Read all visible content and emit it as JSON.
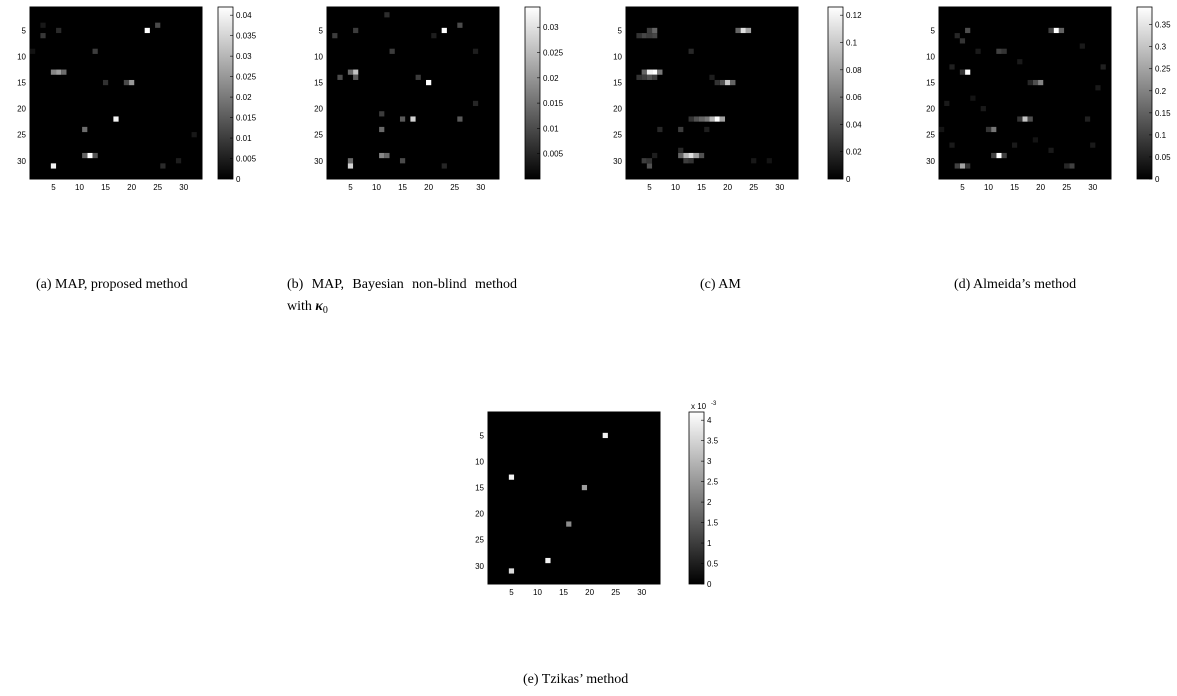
{
  "panels": [
    {
      "id": "a",
      "caption": "(a) MAP, proposed method",
      "ticks": {
        "x": [
          5,
          10,
          15,
          20,
          25,
          30
        ],
        "y": [
          5,
          10,
          15,
          20,
          25,
          30
        ]
      },
      "colorbar": {
        "min": 0,
        "max": 0.042,
        "ticks": [
          0,
          0.005,
          0.01,
          0.015,
          0.02,
          0.025,
          0.03,
          0.035,
          0.04
        ],
        "labels": [
          "0",
          "0.005",
          "0.01",
          "0.015",
          "0.02",
          "0.025",
          "0.03",
          "0.035",
          "0.04"
        ]
      },
      "multiplier": "",
      "cells": [
        [
          23,
          5,
          0.042
        ],
        [
          25,
          4,
          0.012
        ],
        [
          3,
          6,
          0.009
        ],
        [
          6,
          5,
          0.007
        ],
        [
          13,
          9,
          0.01
        ],
        [
          5,
          13,
          0.022
        ],
        [
          6,
          13,
          0.026
        ],
        [
          7,
          13,
          0.018
        ],
        [
          20,
          15,
          0.025
        ],
        [
          19,
          15,
          0.012
        ],
        [
          15,
          15,
          0.008
        ],
        [
          17,
          22,
          0.04
        ],
        [
          11,
          24,
          0.018
        ],
        [
          12,
          29,
          0.042
        ],
        [
          11,
          29,
          0.016
        ],
        [
          13,
          29,
          0.014
        ],
        [
          5,
          31,
          0.04
        ],
        [
          26,
          31,
          0.007
        ],
        [
          29,
          30,
          0.005
        ],
        [
          32,
          25,
          0.004
        ],
        [
          3,
          4,
          0.004
        ],
        [
          1,
          9,
          0.003
        ]
      ]
    },
    {
      "id": "b",
      "caption": "(b) MAP, Bayesian non-blind method with",
      "caption_symbol": "κ",
      "caption_sub": "0",
      "ticks": {
        "x": [
          5,
          10,
          15,
          20,
          25,
          30
        ],
        "y": [
          5,
          10,
          15,
          20,
          25,
          30
        ]
      },
      "colorbar": {
        "min": 0,
        "max": 0.034,
        "ticks": [
          0.005,
          0.01,
          0.015,
          0.02,
          0.025,
          0.03
        ],
        "labels": [
          "0.005",
          "0.01",
          "0.015",
          "0.02",
          "0.025",
          "0.03"
        ]
      },
      "multiplier": "",
      "cells": [
        [
          23,
          5,
          0.034
        ],
        [
          26,
          4,
          0.01
        ],
        [
          2,
          6,
          0.008
        ],
        [
          6,
          5,
          0.008
        ],
        [
          12,
          2,
          0.006
        ],
        [
          13,
          9,
          0.008
        ],
        [
          6,
          13,
          0.026
        ],
        [
          5,
          13,
          0.014
        ],
        [
          6,
          14,
          0.012
        ],
        [
          3,
          14,
          0.01
        ],
        [
          20,
          15,
          0.034
        ],
        [
          18,
          14,
          0.008
        ],
        [
          29,
          19,
          0.005
        ],
        [
          11,
          21,
          0.008
        ],
        [
          15,
          22,
          0.012
        ],
        [
          17,
          22,
          0.028
        ],
        [
          11,
          24,
          0.014
        ],
        [
          26,
          22,
          0.012
        ],
        [
          11,
          29,
          0.018
        ],
        [
          12,
          29,
          0.014
        ],
        [
          15,
          30,
          0.01
        ],
        [
          5,
          30,
          0.014
        ],
        [
          5,
          31,
          0.028
        ],
        [
          23,
          31,
          0.005
        ],
        [
          29,
          9,
          0.004
        ],
        [
          21,
          6,
          0.004
        ]
      ]
    },
    {
      "id": "c",
      "caption": "(c) AM",
      "ticks": {
        "x": [
          5,
          10,
          15,
          20,
          25,
          30
        ],
        "y": [
          5,
          10,
          15,
          20,
          25,
          30
        ]
      },
      "colorbar": {
        "min": 0,
        "max": 0.126,
        "ticks": [
          0,
          0.02,
          0.04,
          0.06,
          0.08,
          0.1,
          0.12
        ],
        "labels": [
          "0",
          "0.02",
          "0.04",
          "0.06",
          "0.08",
          "0.1",
          "0.12"
        ]
      },
      "multiplier": "",
      "cells": [
        [
          22,
          5,
          0.05
        ],
        [
          23,
          5,
          0.11
        ],
        [
          24,
          5,
          0.08
        ],
        [
          5,
          5,
          0.03
        ],
        [
          6,
          5,
          0.05
        ],
        [
          3,
          6,
          0.025
        ],
        [
          4,
          6,
          0.035
        ],
        [
          5,
          6,
          0.03
        ],
        [
          6,
          6,
          0.035
        ],
        [
          13,
          9,
          0.02
        ],
        [
          4,
          13,
          0.05
        ],
        [
          5,
          13,
          0.12
        ],
        [
          6,
          13,
          0.126
        ],
        [
          7,
          13,
          0.06
        ],
        [
          3,
          14,
          0.025
        ],
        [
          4,
          14,
          0.03
        ],
        [
          5,
          14,
          0.04
        ],
        [
          6,
          14,
          0.03
        ],
        [
          19,
          15,
          0.04
        ],
        [
          20,
          15,
          0.1
        ],
        [
          21,
          15,
          0.05
        ],
        [
          18,
          15,
          0.025
        ],
        [
          17,
          14,
          0.015
        ],
        [
          13,
          22,
          0.025
        ],
        [
          14,
          22,
          0.04
        ],
        [
          15,
          22,
          0.05
        ],
        [
          16,
          22,
          0.06
        ],
        [
          17,
          22,
          0.09
        ],
        [
          18,
          22,
          0.126
        ],
        [
          19,
          22,
          0.08
        ],
        [
          11,
          24,
          0.03
        ],
        [
          7,
          24,
          0.02
        ],
        [
          16,
          24,
          0.015
        ],
        [
          11,
          29,
          0.05
        ],
        [
          12,
          29,
          0.09
        ],
        [
          13,
          29,
          0.11
        ],
        [
          14,
          29,
          0.08
        ],
        [
          15,
          29,
          0.04
        ],
        [
          12,
          30,
          0.03
        ],
        [
          4,
          30,
          0.03
        ],
        [
          5,
          31,
          0.04
        ],
        [
          5,
          30,
          0.025
        ],
        [
          6,
          29,
          0.015
        ],
        [
          11,
          28,
          0.02
        ],
        [
          25,
          30,
          0.012
        ],
        [
          28,
          30,
          0.01
        ],
        [
          13,
          30,
          0.025
        ]
      ]
    },
    {
      "id": "d",
      "caption": "(d) Almeida’s method",
      "ticks": {
        "x": [
          5,
          10,
          15,
          20,
          25,
          30
        ],
        "y": [
          5,
          10,
          15,
          20,
          25,
          30
        ]
      },
      "colorbar": {
        "min": 0,
        "max": 0.39,
        "ticks": [
          0,
          0.05,
          0.1,
          0.15,
          0.2,
          0.25,
          0.3,
          0.35
        ],
        "labels": [
          "0",
          "0.05",
          "0.1",
          "0.15",
          "0.2",
          "0.25",
          "0.3",
          "0.35"
        ]
      },
      "multiplier": "",
      "cells": [
        [
          23,
          5,
          0.39
        ],
        [
          22,
          5,
          0.1
        ],
        [
          24,
          5,
          0.15
        ],
        [
          6,
          5,
          0.12
        ],
        [
          5,
          7,
          0.08
        ],
        [
          4,
          6,
          0.06
        ],
        [
          12,
          9,
          0.1
        ],
        [
          13,
          9,
          0.08
        ],
        [
          6,
          13,
          0.39
        ],
        [
          5,
          13,
          0.08
        ],
        [
          3,
          12,
          0.05
        ],
        [
          20,
          15,
          0.2
        ],
        [
          19,
          15,
          0.12
        ],
        [
          18,
          15,
          0.06
        ],
        [
          17,
          22,
          0.3
        ],
        [
          18,
          22,
          0.12
        ],
        [
          16,
          22,
          0.08
        ],
        [
          11,
          24,
          0.18
        ],
        [
          10,
          24,
          0.08
        ],
        [
          12,
          29,
          0.39
        ],
        [
          11,
          29,
          0.1
        ],
        [
          13,
          29,
          0.1
        ],
        [
          5,
          31,
          0.25
        ],
        [
          4,
          31,
          0.1
        ],
        [
          6,
          31,
          0.08
        ],
        [
          26,
          31,
          0.1
        ],
        [
          25,
          31,
          0.06
        ],
        [
          29,
          22,
          0.05
        ],
        [
          32,
          12,
          0.05
        ],
        [
          31,
          16,
          0.04
        ],
        [
          2,
          19,
          0.04
        ],
        [
          16,
          11,
          0.04
        ],
        [
          8,
          9,
          0.04
        ],
        [
          28,
          8,
          0.04
        ],
        [
          15,
          27,
          0.04
        ],
        [
          9,
          20,
          0.04
        ],
        [
          22,
          28,
          0.04
        ],
        [
          3,
          27,
          0.04
        ],
        [
          30,
          27,
          0.04
        ],
        [
          1,
          24,
          0.03
        ],
        [
          19,
          26,
          0.03
        ],
        [
          7,
          18,
          0.03
        ]
      ]
    },
    {
      "id": "e",
      "caption": "(e) Tzikas’ method",
      "ticks": {
        "x": [
          5,
          10,
          15,
          20,
          25,
          30
        ],
        "y": [
          5,
          10,
          15,
          20,
          25,
          30
        ]
      },
      "colorbar": {
        "min": 0,
        "max": 4.2,
        "ticks": [
          0,
          0.5,
          1,
          1.5,
          2,
          2.5,
          3,
          3.5,
          4
        ],
        "labels": [
          "0",
          "0.5",
          "1",
          "1.5",
          "2",
          "2.5",
          "3",
          "3.5",
          "4"
        ]
      },
      "multiplier": "x 10",
      "multiplier_exp": "-3",
      "cells": [
        [
          23,
          5,
          4.0
        ],
        [
          5,
          13,
          4.0
        ],
        [
          19,
          15,
          2.6
        ],
        [
          16,
          22,
          2.3
        ],
        [
          12,
          29,
          4.0
        ],
        [
          5,
          31,
          3.6
        ]
      ]
    }
  ]
}
